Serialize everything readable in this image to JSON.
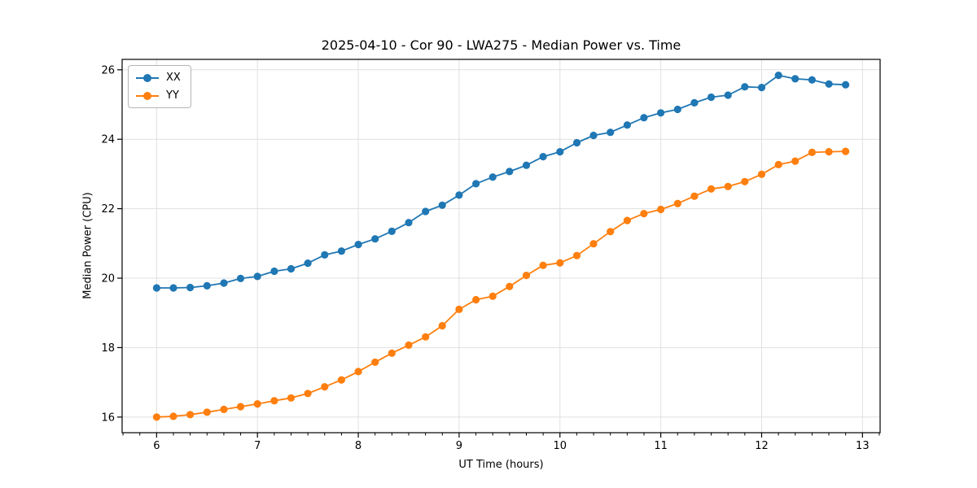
{
  "chart_data": {
    "type": "line",
    "title": "2025-04-10 - Cor 90 - LWA275 - Median Power vs. Time",
    "xlabel": "UT Time (hours)",
    "ylabel": "Median Power (CPU)",
    "xlim": [
      5.658,
      13.175
    ],
    "ylim": [
      15.55,
      26.3
    ],
    "x_ticks": [
      6,
      7,
      8,
      9,
      10,
      11,
      12,
      13
    ],
    "y_ticks": [
      16,
      18,
      20,
      22,
      24,
      26
    ],
    "x_minor_step_per_hour": 6,
    "grid": true,
    "legend_position": "upper left",
    "x": [
      6.0,
      6.167,
      6.333,
      6.5,
      6.667,
      6.833,
      7.0,
      7.167,
      7.333,
      7.5,
      7.667,
      7.833,
      8.0,
      8.167,
      8.333,
      8.5,
      8.667,
      8.833,
      9.0,
      9.167,
      9.333,
      9.5,
      9.667,
      9.833,
      10.0,
      10.167,
      10.333,
      10.5,
      10.667,
      10.833,
      11.0,
      11.167,
      11.333,
      11.5,
      11.667,
      11.833,
      12.0,
      12.167,
      12.333,
      12.5,
      12.667,
      12.833
    ],
    "series": [
      {
        "name": "XX",
        "color": "#1f77b4",
        "values": [
          19.72,
          19.72,
          19.73,
          19.78,
          19.86,
          19.99,
          20.05,
          20.2,
          20.27,
          20.43,
          20.67,
          20.78,
          20.97,
          21.13,
          21.35,
          21.6,
          21.92,
          22.1,
          22.39,
          22.72,
          22.91,
          23.07,
          23.25,
          23.5,
          23.64,
          23.9,
          24.11,
          24.2,
          24.41,
          24.62,
          24.76,
          24.86,
          25.05,
          25.21,
          25.27,
          25.51,
          25.49,
          25.84,
          25.74,
          25.71,
          25.59,
          25.57
        ]
      },
      {
        "name": "YY",
        "color": "#ff7f0e",
        "values": [
          16.0,
          16.02,
          16.07,
          16.14,
          16.22,
          16.3,
          16.38,
          16.47,
          16.55,
          16.68,
          16.87,
          17.07,
          17.31,
          17.58,
          17.84,
          18.07,
          18.31,
          18.63,
          19.1,
          19.38,
          19.48,
          19.76,
          20.08,
          20.37,
          20.44,
          20.65,
          20.99,
          21.34,
          21.66,
          21.86,
          21.98,
          22.15,
          22.36,
          22.57,
          22.64,
          22.78,
          22.99,
          23.27,
          23.37,
          23.62,
          23.64,
          23.65
        ]
      }
    ]
  }
}
